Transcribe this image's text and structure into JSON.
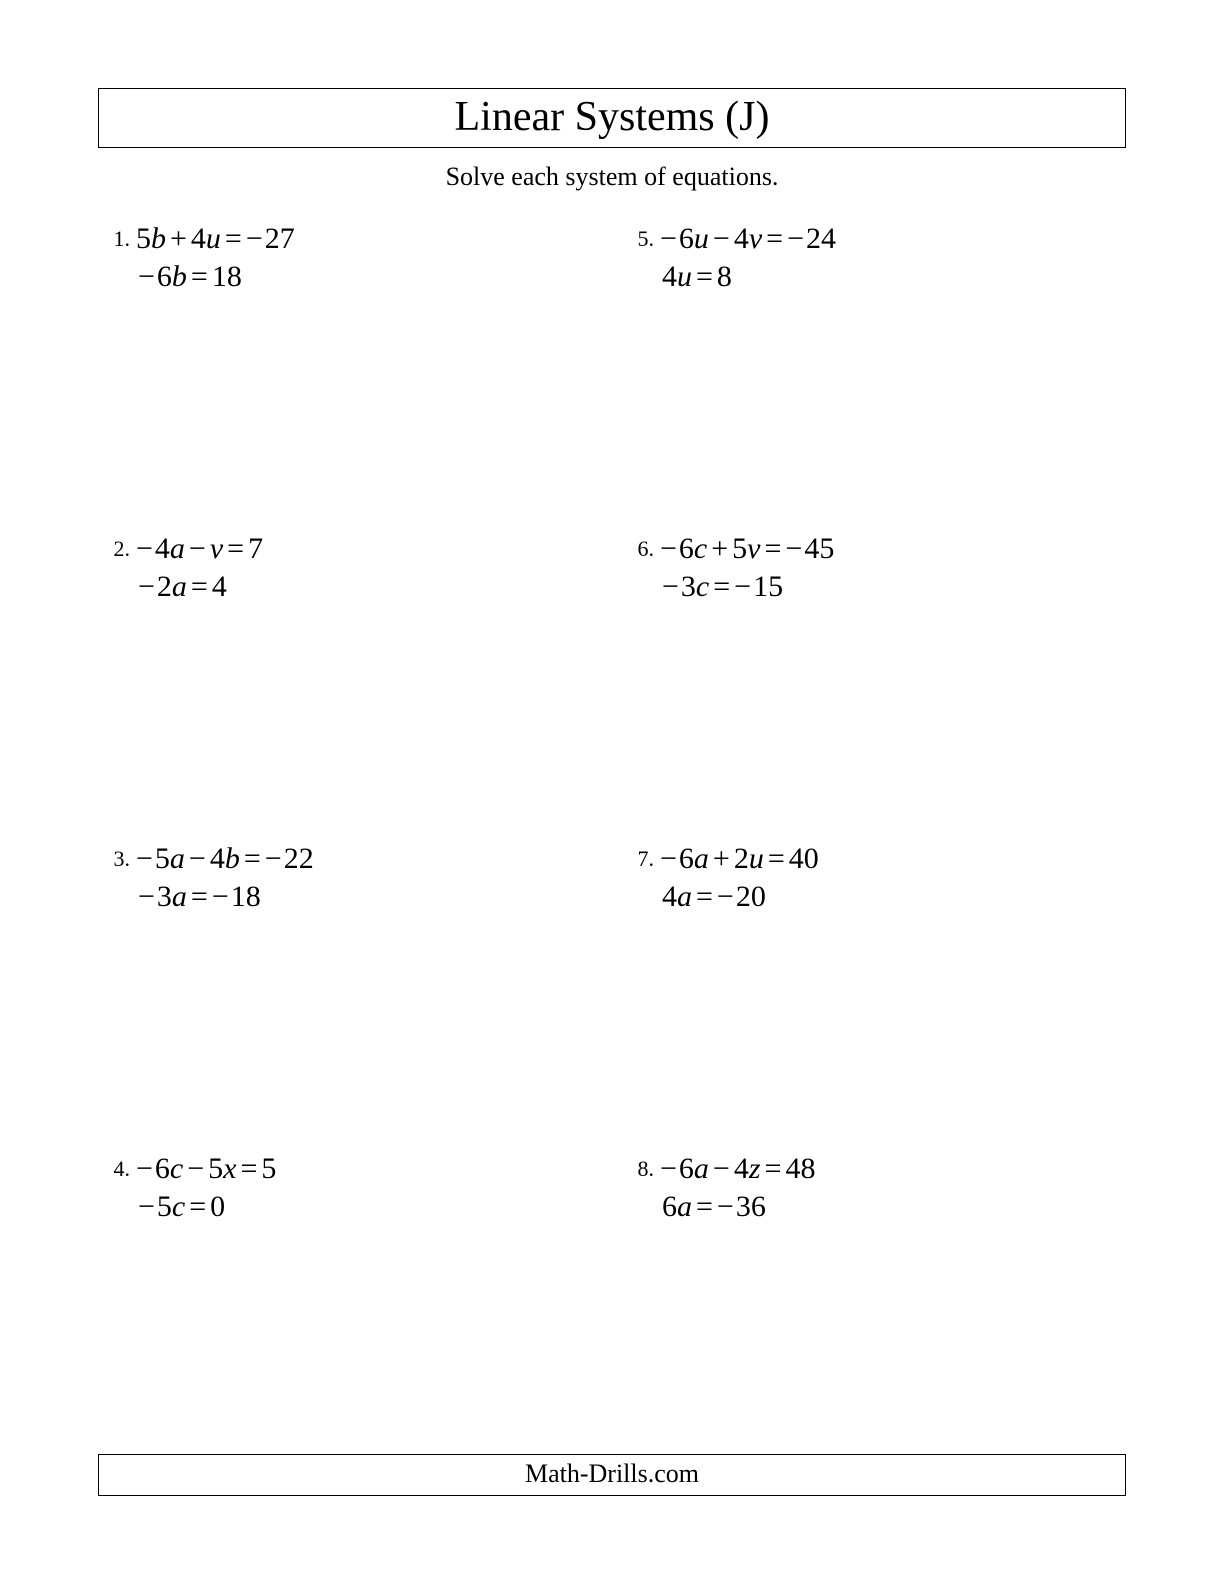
{
  "title": "Linear Systems (J)",
  "instructions": "Solve each system of equations.",
  "footer": "Math-Drills.com",
  "problems": [
    {
      "number": "1.",
      "eq1": [
        {
          "t": "num",
          "v": "5"
        },
        {
          "t": "var",
          "v": "b"
        },
        {
          "t": "op",
          "v": "+"
        },
        {
          "t": "num",
          "v": "4"
        },
        {
          "t": "var",
          "v": "u"
        },
        {
          "t": "op",
          "v": "="
        },
        {
          "t": "neg",
          "v": "−"
        },
        {
          "t": "num",
          "v": "27"
        }
      ],
      "eq2": [
        {
          "t": "neg",
          "v": "−"
        },
        {
          "t": "num",
          "v": "6"
        },
        {
          "t": "var",
          "v": "b"
        },
        {
          "t": "op",
          "v": "="
        },
        {
          "t": "num",
          "v": "18"
        }
      ]
    },
    {
      "number": "2.",
      "eq1": [
        {
          "t": "neg",
          "v": "−"
        },
        {
          "t": "num",
          "v": "4"
        },
        {
          "t": "var",
          "v": "a"
        },
        {
          "t": "op",
          "v": "−"
        },
        {
          "t": "var",
          "v": "v"
        },
        {
          "t": "op",
          "v": "="
        },
        {
          "t": "num",
          "v": "7"
        }
      ],
      "eq2": [
        {
          "t": "neg",
          "v": "−"
        },
        {
          "t": "num",
          "v": "2"
        },
        {
          "t": "var",
          "v": "a"
        },
        {
          "t": "op",
          "v": "="
        },
        {
          "t": "num",
          "v": "4"
        }
      ]
    },
    {
      "number": "3.",
      "eq1": [
        {
          "t": "neg",
          "v": "−"
        },
        {
          "t": "num",
          "v": "5"
        },
        {
          "t": "var",
          "v": "a"
        },
        {
          "t": "op",
          "v": "−"
        },
        {
          "t": "num",
          "v": "4"
        },
        {
          "t": "var",
          "v": "b"
        },
        {
          "t": "op",
          "v": "="
        },
        {
          "t": "neg",
          "v": "−"
        },
        {
          "t": "num",
          "v": "22"
        }
      ],
      "eq2": [
        {
          "t": "neg",
          "v": "−"
        },
        {
          "t": "num",
          "v": "3"
        },
        {
          "t": "var",
          "v": "a"
        },
        {
          "t": "op",
          "v": "="
        },
        {
          "t": "neg",
          "v": "−"
        },
        {
          "t": "num",
          "v": "18"
        }
      ]
    },
    {
      "number": "4.",
      "eq1": [
        {
          "t": "neg",
          "v": "−"
        },
        {
          "t": "num",
          "v": "6"
        },
        {
          "t": "var",
          "v": "c"
        },
        {
          "t": "op",
          "v": "−"
        },
        {
          "t": "num",
          "v": "5"
        },
        {
          "t": "var",
          "v": "x"
        },
        {
          "t": "op",
          "v": "="
        },
        {
          "t": "num",
          "v": "5"
        }
      ],
      "eq2": [
        {
          "t": "neg",
          "v": "−"
        },
        {
          "t": "num",
          "v": "5"
        },
        {
          "t": "var",
          "v": "c"
        },
        {
          "t": "op",
          "v": "="
        },
        {
          "t": "num",
          "v": "0"
        }
      ]
    },
    {
      "number": "5.",
      "eq1": [
        {
          "t": "neg",
          "v": "−"
        },
        {
          "t": "num",
          "v": "6"
        },
        {
          "t": "var",
          "v": "u"
        },
        {
          "t": "op",
          "v": "−"
        },
        {
          "t": "num",
          "v": "4"
        },
        {
          "t": "var",
          "v": "v"
        },
        {
          "t": "op",
          "v": "="
        },
        {
          "t": "neg",
          "v": "−"
        },
        {
          "t": "num",
          "v": "24"
        }
      ],
      "eq2": [
        {
          "t": "num",
          "v": "4"
        },
        {
          "t": "var",
          "v": "u"
        },
        {
          "t": "op",
          "v": "="
        },
        {
          "t": "num",
          "v": "8"
        }
      ]
    },
    {
      "number": "6.",
      "eq1": [
        {
          "t": "neg",
          "v": "−"
        },
        {
          "t": "num",
          "v": "6"
        },
        {
          "t": "var",
          "v": "c"
        },
        {
          "t": "op",
          "v": "+"
        },
        {
          "t": "num",
          "v": "5"
        },
        {
          "t": "var",
          "v": "v"
        },
        {
          "t": "op",
          "v": "="
        },
        {
          "t": "neg",
          "v": "−"
        },
        {
          "t": "num",
          "v": "45"
        }
      ],
      "eq2": [
        {
          "t": "neg",
          "v": "−"
        },
        {
          "t": "num",
          "v": "3"
        },
        {
          "t": "var",
          "v": "c"
        },
        {
          "t": "op",
          "v": "="
        },
        {
          "t": "neg",
          "v": "−"
        },
        {
          "t": "num",
          "v": "15"
        }
      ]
    },
    {
      "number": "7.",
      "eq1": [
        {
          "t": "neg",
          "v": "−"
        },
        {
          "t": "num",
          "v": "6"
        },
        {
          "t": "var",
          "v": "a"
        },
        {
          "t": "op",
          "v": "+"
        },
        {
          "t": "num",
          "v": "2"
        },
        {
          "t": "var",
          "v": "u"
        },
        {
          "t": "op",
          "v": "="
        },
        {
          "t": "num",
          "v": "40"
        }
      ],
      "eq2": [
        {
          "t": "num",
          "v": "4"
        },
        {
          "t": "var",
          "v": "a"
        },
        {
          "t": "op",
          "v": "="
        },
        {
          "t": "neg",
          "v": "−"
        },
        {
          "t": "num",
          "v": "20"
        }
      ]
    },
    {
      "number": "8.",
      "eq1": [
        {
          "t": "neg",
          "v": "−"
        },
        {
          "t": "num",
          "v": "6"
        },
        {
          "t": "var",
          "v": "a"
        },
        {
          "t": "op",
          "v": "−"
        },
        {
          "t": "num",
          "v": "4"
        },
        {
          "t": "var",
          "v": "z"
        },
        {
          "t": "op",
          "v": "="
        },
        {
          "t": "num",
          "v": "48"
        }
      ],
      "eq2": [
        {
          "t": "num",
          "v": "6"
        },
        {
          "t": "var",
          "v": "a"
        },
        {
          "t": "op",
          "v": "="
        },
        {
          "t": "neg",
          "v": "−"
        },
        {
          "t": "num",
          "v": "36"
        }
      ]
    }
  ]
}
